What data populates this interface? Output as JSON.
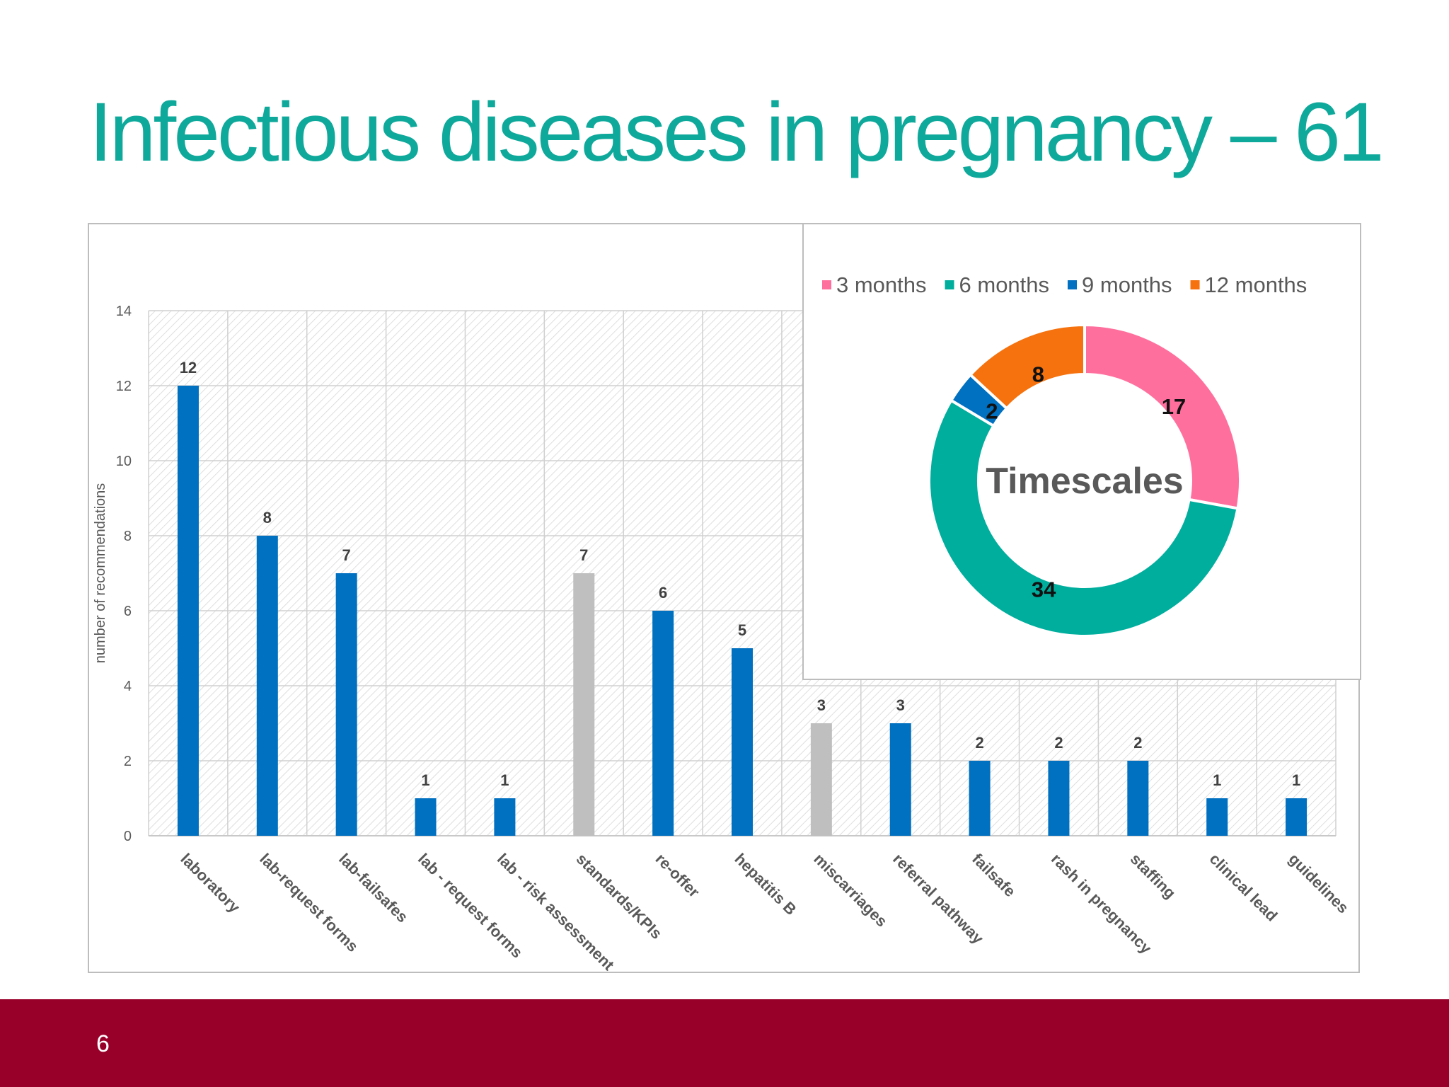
{
  "slide": {
    "title": "Infectious diseases in pregnancy – 61",
    "page_number": "6",
    "title_color": "#0FA99B",
    "footer_color": "#990029"
  },
  "chart_data": [
    {
      "type": "bar",
      "title": "",
      "xlabel": "",
      "ylabel": "number of recommendations",
      "ylim": [
        0,
        14
      ],
      "yticks": [
        0,
        2,
        4,
        6,
        8,
        10,
        12,
        14
      ],
      "grid": true,
      "data_labels": true,
      "categories": [
        "laboratory",
        "lab-request forms",
        "lab-failsafes",
        "lab - request forms",
        "lab - risk assessment",
        "standards/KPIs",
        "re-offer",
        "hepatitis B",
        "miscarriages",
        "referral pathway",
        "failsafe",
        "rash in pregnancy",
        "staffing",
        "clinical lead",
        "guidelines"
      ],
      "values": [
        12,
        8,
        7,
        1,
        1,
        7,
        6,
        5,
        3,
        3,
        2,
        2,
        2,
        1,
        1
      ],
      "bar_colors": [
        "#0070C0",
        "#0070C0",
        "#0070C0",
        "#0070C0",
        "#0070C0",
        "#BFBFBF",
        "#0070C0",
        "#0070C0",
        "#BFBFBF",
        "#0070C0",
        "#0070C0",
        "#0070C0",
        "#0070C0",
        "#0070C0",
        "#0070C0"
      ]
    },
    {
      "type": "pie",
      "style": "donut",
      "center_label": "Timescales",
      "legend_position": "top",
      "data_labels": true,
      "slices": [
        {
          "name": "3 months",
          "value": 17,
          "color": "#FF6F9E"
        },
        {
          "name": "6 months",
          "value": 34,
          "color": "#00AE9E"
        },
        {
          "name": "9 months",
          "value": 2,
          "color": "#0070C0"
        },
        {
          "name": "12 months",
          "value": 8,
          "color": "#F5720E"
        }
      ]
    }
  ]
}
